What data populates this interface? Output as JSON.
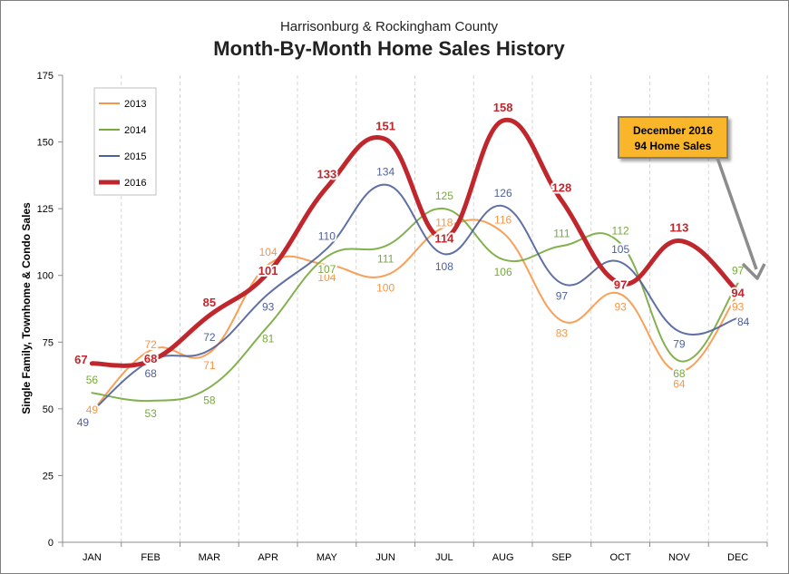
{
  "chart_data": {
    "type": "line",
    "subtitle": "Harrisonburg & Rockingham County",
    "title": "Month-By-Month Home Sales History",
    "xlabel": "",
    "ylabel": "Single Family, Townhome & Condo Sales",
    "ylim": [
      0,
      175
    ],
    "yticks": [
      "0",
      "25",
      "50",
      "75",
      "100",
      "125",
      "150",
      "175"
    ],
    "categories": [
      "JAN",
      "FEB",
      "MAR",
      "APR",
      "MAY",
      "JUN",
      "JUL",
      "AUG",
      "SEP",
      "OCT",
      "NOV",
      "DEC"
    ],
    "grid": "vertical dashed",
    "legend_position": "top-left",
    "series": [
      {
        "name": "2013",
        "color": "#f79646",
        "values": [
          49,
          72,
          71,
          104,
          104,
          100,
          118,
          116,
          83,
          93,
          64,
          93
        ]
      },
      {
        "name": "2014",
        "color": "#77a93c",
        "values": [
          56,
          53,
          58,
          81,
          107,
          111,
          125,
          106,
          111,
          112,
          68,
          97
        ]
      },
      {
        "name": "2015",
        "color": "#4f5f9a",
        "values": [
          49,
          68,
          72,
          93,
          110,
          134,
          108,
          126,
          97,
          105,
          79,
          84
        ]
      },
      {
        "name": "2016",
        "color": "#c0272d",
        "values": [
          67,
          68,
          85,
          101,
          133,
          151,
          114,
          158,
          128,
          97,
          113,
          94
        ]
      }
    ],
    "annotation": {
      "line1": "December 2016",
      "line2": "94 Home Sales",
      "fill": "#f9b62b",
      "target_category": "DEC",
      "target_value": 94
    }
  }
}
